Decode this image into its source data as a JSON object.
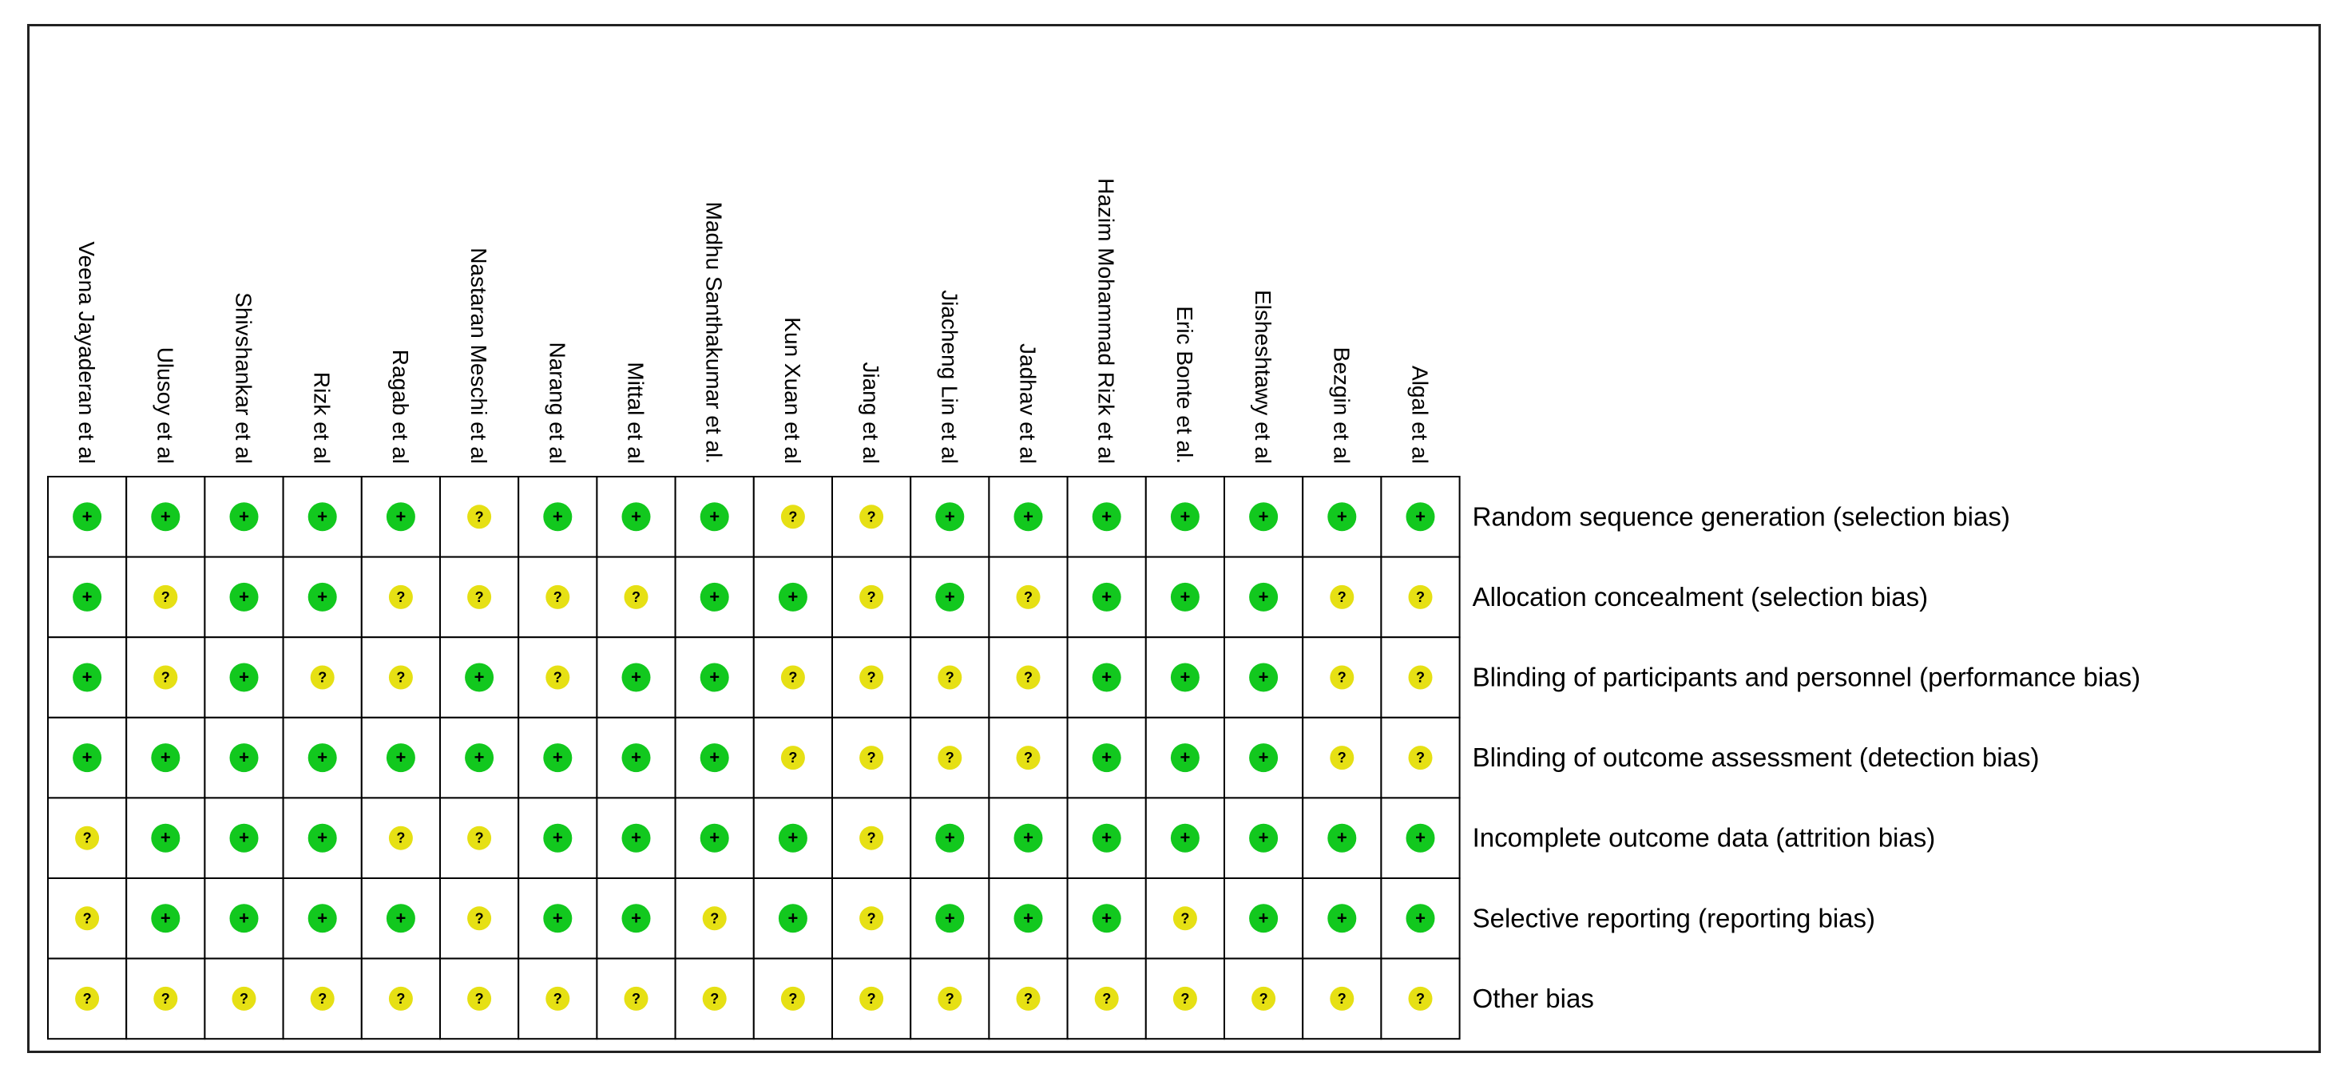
{
  "chart_data": {
    "type": "table",
    "studies": [
      "Veena Jayaderan et al",
      "Ulusoy et al",
      "Shivshankar et al",
      "Rizk et al",
      "Ragab et al",
      "Nastaran Meschi et al",
      "Narang et al",
      "Mittal et al",
      "Madhu Santhakumar et al.",
      "Kun Xuan et al",
      "Jiang et al",
      "Jiacheng Lin et al",
      "Jadhav et al",
      "Hazim Mohammad Rizk et al",
      "Eric Bonte et al.",
      "Elsheshtawy et al",
      "Bezgin et al",
      "Algal et al"
    ],
    "domains": [
      "Random sequence generation (selection bias)",
      "Allocation concealment (selection bias)",
      "Blinding of participants and personnel (performance bias)",
      "Blinding of outcome assessment (detection bias)",
      "Incomplete outcome data (attrition bias)",
      "Selective reporting (reporting bias)",
      "Other bias"
    ],
    "judgements": [
      [
        "+",
        "+",
        "+",
        "+",
        "+",
        "?",
        "+",
        "+",
        "+",
        "?",
        "?",
        "+",
        "+",
        "+",
        "+",
        "+",
        "+",
        "+"
      ],
      [
        "+",
        "?",
        "+",
        "+",
        "?",
        "?",
        "?",
        "?",
        "+",
        "+",
        "?",
        "+",
        "?",
        "+",
        "+",
        "+",
        "?",
        "?"
      ],
      [
        "+",
        "?",
        "+",
        "?",
        "?",
        "+",
        "?",
        "+",
        "+",
        "?",
        "?",
        "?",
        "?",
        "+",
        "+",
        "+",
        "?",
        "?"
      ],
      [
        "+",
        "+",
        "+",
        "+",
        "+",
        "+",
        "+",
        "+",
        "+",
        "?",
        "?",
        "?",
        "?",
        "+",
        "+",
        "+",
        "?",
        "?"
      ],
      [
        "?",
        "+",
        "+",
        "+",
        "?",
        "?",
        "+",
        "+",
        "+",
        "+",
        "?",
        "+",
        "+",
        "+",
        "+",
        "+",
        "+",
        "+"
      ],
      [
        "?",
        "+",
        "+",
        "+",
        "+",
        "?",
        "+",
        "+",
        "?",
        "+",
        "?",
        "+",
        "+",
        "+",
        "?",
        "+",
        "+",
        "+"
      ],
      [
        "?",
        "?",
        "?",
        "?",
        "?",
        "?",
        "?",
        "?",
        "?",
        "?",
        "?",
        "?",
        "?",
        "?",
        "?",
        "?",
        "?",
        "?"
      ]
    ],
    "legend": {
      "+": {
        "symbol": "+",
        "color": "#12c81e"
      },
      "?": {
        "symbol": "?",
        "color": "#e6e014"
      }
    }
  }
}
